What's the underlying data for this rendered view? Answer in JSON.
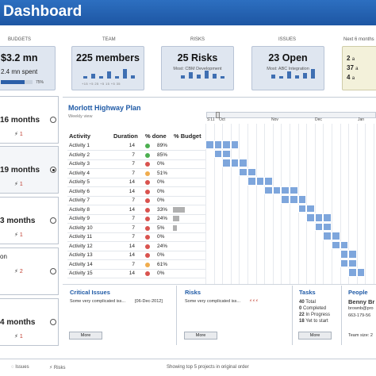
{
  "header": {
    "title": "Dashboard"
  },
  "kpis": [
    {
      "label": "BUDGETS",
      "value": "$3.2 mn",
      "sub": "2.4 mn spent",
      "pct": "75%"
    },
    {
      "label": "TEAM",
      "value": "225 members",
      "axis": "+15 +5 25 +5 15 +5 35"
    },
    {
      "label": "RISKS",
      "value": "25 Risks",
      "sub": "Most: CBM Development"
    },
    {
      "label": "ISSUES",
      "value": "23 Open",
      "sub": "Most: ABC Integration"
    },
    {
      "label": "Next 6 months",
      "lines": [
        "2",
        "37",
        "4"
      ],
      "suffix": [
        "a",
        "a",
        "a"
      ]
    }
  ],
  "projects": [
    {
      "duration": "16 months",
      "count": "1",
      "selected": false
    },
    {
      "duration": "19 months",
      "count": "1",
      "selected": true
    },
    {
      "duration": "3 months",
      "count": "1",
      "selected": false
    },
    {
      "duration": "on",
      "count": "2",
      "selected": false
    },
    {
      "duration": "4 months",
      "count": "1",
      "selected": false
    }
  ],
  "plan": {
    "title": "Morlott Highway Plan",
    "view": "Weekly view",
    "columns": {
      "activity": "Activity",
      "duration": "Duration",
      "done": "% done",
      "budget": "% Budget"
    },
    "months": {
      "oct": "Oct",
      "nov": "Nov",
      "dec": "Dec",
      "jan": "Jan",
      "s": "S'11"
    },
    "rows": [
      {
        "name": "Activity 1",
        "duration": "14",
        "status": "green",
        "pct": "89%",
        "budget": 0
      },
      {
        "name": "Activity 2",
        "duration": "7",
        "status": "green",
        "pct": "85%",
        "budget": 0
      },
      {
        "name": "Activity 3",
        "duration": "7",
        "status": "red",
        "pct": "0%",
        "budget": 0
      },
      {
        "name": "Activity 4",
        "duration": "7",
        "status": "yellow",
        "pct": "51%",
        "budget": 0
      },
      {
        "name": "Activity 5",
        "duration": "14",
        "status": "red",
        "pct": "0%",
        "budget": 0
      },
      {
        "name": "Activity 6",
        "duration": "14",
        "status": "red",
        "pct": "0%",
        "budget": 0
      },
      {
        "name": "Activity 7",
        "duration": "7",
        "status": "red",
        "pct": "0%",
        "budget": 0
      },
      {
        "name": "Activity 8",
        "duration": "14",
        "status": "red",
        "pct": "33%",
        "budget": 0.6
      },
      {
        "name": "Activity 9",
        "duration": "7",
        "status": "red",
        "pct": "24%",
        "budget": 0.3
      },
      {
        "name": "Activity 10",
        "duration": "7",
        "status": "red",
        "pct": "5%",
        "budget": 0.2
      },
      {
        "name": "Activity 11",
        "duration": "7",
        "status": "red",
        "pct": "0%",
        "budget": 0
      },
      {
        "name": "Activity 12",
        "duration": "14",
        "status": "red",
        "pct": "24%",
        "budget": 0
      },
      {
        "name": "Activity 13",
        "duration": "14",
        "status": "red",
        "pct": "0%",
        "budget": 0
      },
      {
        "name": "Activity 14",
        "duration": "7",
        "status": "yellow",
        "pct": "61%",
        "budget": 0
      },
      {
        "name": "Activity 15",
        "duration": "14",
        "status": "red",
        "pct": "0%",
        "budget": 0
      }
    ]
  },
  "critical": {
    "title": "Critical Issues",
    "item": "Some very complicated iss...",
    "date": "[06-Dec-2012]",
    "more": "More"
  },
  "risks": {
    "title": "Risks",
    "item": "Some very complicated iss...",
    "more": "More"
  },
  "tasks": {
    "title": "Tasks",
    "lines": [
      {
        "n": "40",
        "t": "Total"
      },
      {
        "n": "0",
        "t": "Completed"
      },
      {
        "n": "22",
        "t": "In Progress"
      },
      {
        "n": "18",
        "t": "Yet to start"
      }
    ],
    "more": "More"
  },
  "people": {
    "title": "People",
    "name": "Benny Br",
    "email": "brownb@pro",
    "phone": "663-179-56",
    "team": "Team size: 2"
  },
  "footer": {
    "issues": "Issues",
    "risks": "Risks",
    "note": "Showing top 5 projects in original order"
  },
  "colors": {
    "accent": "#1f5aa6",
    "bar": "#7ea6dc",
    "green": "#4caf50",
    "red": "#d9534f",
    "yellow": "#f0ad4e"
  }
}
